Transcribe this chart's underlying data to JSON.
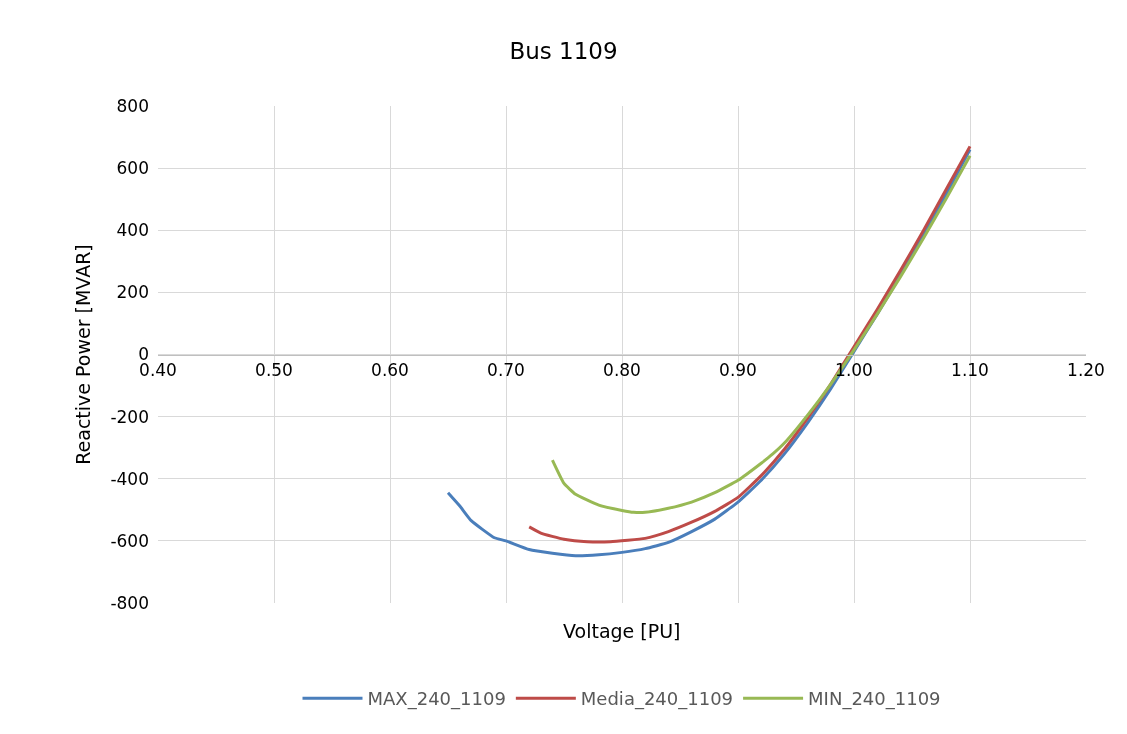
{
  "chart_data": {
    "type": "line",
    "title": "Bus 1109",
    "xlabel": "Voltage [PU]",
    "ylabel": "Reactive Power [MVAR]",
    "xlim": [
      0.4,
      1.2
    ],
    "xticks": [
      {
        "value": 0.4,
        "label": "0.40"
      },
      {
        "value": 0.5,
        "label": "0.50"
      },
      {
        "value": 0.6,
        "label": "0.60"
      },
      {
        "value": 0.7,
        "label": "0.70"
      },
      {
        "value": 0.8,
        "label": "0.80"
      },
      {
        "value": 0.9,
        "label": "0.90"
      },
      {
        "value": 1.0,
        "label": "1.00"
      },
      {
        "value": 1.1,
        "label": "1.10"
      },
      {
        "value": 1.2,
        "label": "1.20"
      }
    ],
    "ylim": [
      -800,
      800
    ],
    "yticks": [
      -800,
      -600,
      -400,
      -200,
      0,
      200,
      400,
      600,
      800
    ],
    "grid": true,
    "legend": "bottom",
    "marker": "none",
    "line_style": "solid",
    "series": [
      {
        "name": "MAX_240_1109",
        "color": "#4a7ebb",
        "x": [
          0.65,
          0.66,
          0.67,
          0.69,
          0.7,
          0.72,
          0.74,
          0.76,
          0.78,
          0.8,
          0.82,
          0.84,
          0.86,
          0.88,
          0.9,
          0.92,
          0.94,
          0.96,
          0.98,
          1.0,
          1.02,
          1.04,
          1.06,
          1.08,
          1.1
        ],
        "values": [
          -445,
          -487,
          -535,
          -590,
          -600,
          -628,
          -640,
          -648,
          -645,
          -637,
          -625,
          -605,
          -570,
          -530,
          -475,
          -405,
          -320,
          -220,
          -110,
          10,
          130,
          255,
          385,
          520,
          660
        ]
      },
      {
        "name": "Media_240_1109",
        "color": "#be4b48",
        "x": [
          0.72,
          0.73,
          0.75,
          0.77,
          0.79,
          0.82,
          0.84,
          0.86,
          0.88,
          0.9,
          0.92,
          0.94,
          0.96,
          0.98,
          1.0,
          1.02,
          1.04,
          1.06,
          1.08,
          1.1
        ],
        "values": [
          -555,
          -575,
          -595,
          -603,
          -603,
          -592,
          -570,
          -540,
          -505,
          -460,
          -390,
          -305,
          -205,
          -95,
          25,
          145,
          270,
          400,
          535,
          670
        ]
      },
      {
        "name": "MIN_240_1109",
        "color": "#98b954",
        "x": [
          0.74,
          0.75,
          0.76,
          0.78,
          0.8,
          0.81,
          0.82,
          0.84,
          0.86,
          0.88,
          0.9,
          0.92,
          0.93,
          0.94,
          0.96,
          0.98,
          1.0,
          1.02,
          1.04,
          1.06,
          1.08,
          1.1
        ],
        "values": [
          -340,
          -415,
          -450,
          -485,
          -502,
          -508,
          -508,
          -495,
          -475,
          -445,
          -405,
          -350,
          -320,
          -285,
          -195,
          -95,
          15,
          130,
          250,
          375,
          505,
          640
        ]
      }
    ]
  }
}
